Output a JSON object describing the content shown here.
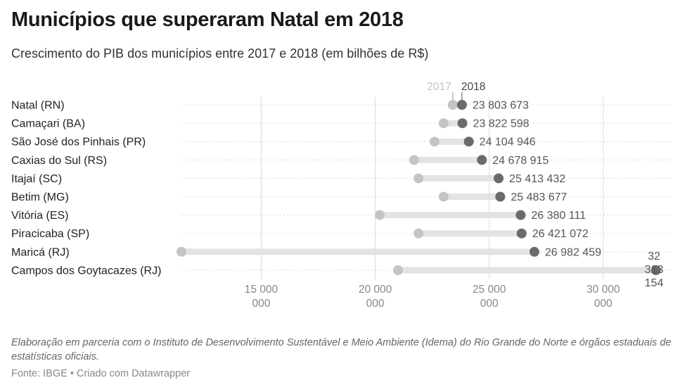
{
  "title": "Municípios que superaram Natal em 2018",
  "subtitle": "Crescimento do PIB dos municípios entre 2017 e 2018 (em bilhões de R$)",
  "notes": "Elaboração em parceria com o Instituto de Desenvolvimento Sustentável e Meio Ambiente (Idema) do Rio Grande do Norte e órgãos estaduais de estatísticas oficiais.",
  "footer": "Fonte: IBGE • Criado com Datawrapper",
  "colors": {
    "y2017": "#c4c4c4",
    "y2018": "#6b6b6b",
    "bar": "#e3e3e3",
    "grid": "#dcdcdc"
  },
  "chart_data": {
    "type": "dot-range",
    "series_labels": [
      "2017",
      "2018"
    ],
    "categories": [
      "Natal (RN)",
      "Camaçari (BA)",
      "São José dos Pinhais (PR)",
      "Caxias do Sul (RS)",
      "Itajaí (SC)",
      "Betim (MG)",
      "Vitória (ES)",
      "Piracicaba (SP)",
      "Maricá (RJ)",
      "Campos dos Goytacazes (RJ)"
    ],
    "values_2017": [
      23400000,
      23000000,
      22600000,
      21700000,
      21900000,
      23000000,
      20200000,
      21900000,
      11500000,
      21000000
    ],
    "values_2018": [
      23803673,
      23822598,
      24104946,
      24678915,
      25413432,
      25483677,
      26380111,
      26421072,
      26982459,
      32313154
    ],
    "labels_2018": [
      "23 803 673",
      "23 822 598",
      "24 104 946",
      "24 678 915",
      "25 413 432",
      "25 483 677",
      "26 380 111",
      "26 421 072",
      "26 982 459",
      "32 313 154"
    ],
    "last_label_lines": [
      "32",
      "313",
      "154"
    ],
    "xlim": [
      11500000,
      33000000
    ],
    "x_ticks": [
      15000000,
      20000000,
      25000000,
      30000000
    ],
    "x_tick_labels": [
      [
        "15 000",
        "000"
      ],
      [
        "20 000",
        "000"
      ],
      [
        "25 000",
        "000"
      ],
      [
        "30 000",
        "000"
      ]
    ],
    "grid": true
  }
}
